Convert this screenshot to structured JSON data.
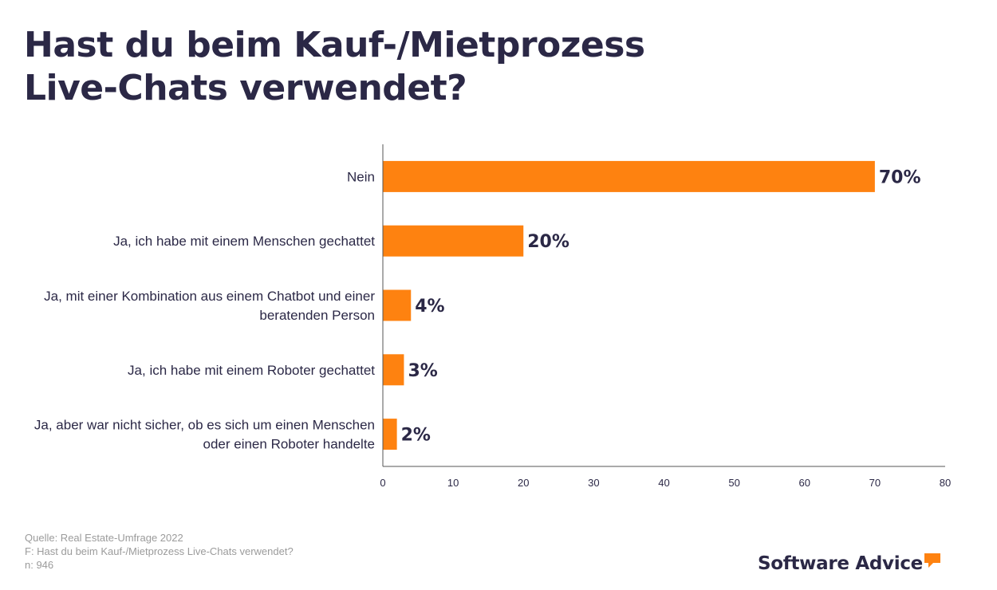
{
  "title": "Hast du beim Kauf-/Mietprozess Live-Chats verwendet?",
  "colors": {
    "bar": "#fe8210",
    "text": "#2b2846",
    "axis": "#555555",
    "footer": "#9b9b9b",
    "logo_accent": "#fe8210"
  },
  "chart_data": {
    "type": "bar",
    "orientation": "horizontal",
    "title": "Hast du beim Kauf-/Mietprozess Live-Chats verwendet?",
    "categories": [
      [
        "Nein"
      ],
      [
        "Ja, ich habe mit einem Menschen gechattet"
      ],
      [
        "Ja, mit einer Kombination aus einem Chatbot und einer",
        "beratenden Person"
      ],
      [
        "Ja, ich habe mit einem Roboter gechattet"
      ],
      [
        "Ja, aber war nicht sicher, ob es sich um einen Menschen",
        "oder einen Roboter handelte"
      ]
    ],
    "values": [
      70,
      20,
      4,
      3,
      2
    ],
    "data_labels": [
      "70%",
      "20%",
      "4%",
      "3%",
      "2%"
    ],
    "xlim": [
      0,
      80
    ],
    "xticks": [
      0,
      10,
      20,
      30,
      40,
      50,
      60,
      70,
      80
    ],
    "xtick_labels": [
      "0",
      "10",
      "20",
      "30",
      "40",
      "50",
      "60",
      "70",
      "80"
    ],
    "xlabel": "",
    "ylabel": "",
    "grid": false
  },
  "footer": {
    "source": "Quelle: Real Estate-Umfrage 2022",
    "question": "F: Hast du beim Kauf-/Mietprozess Live-Chats verwendet?",
    "n": "n: 946"
  },
  "logo": {
    "text": "Software Advice",
    "icon": "speech-bubble-icon"
  }
}
